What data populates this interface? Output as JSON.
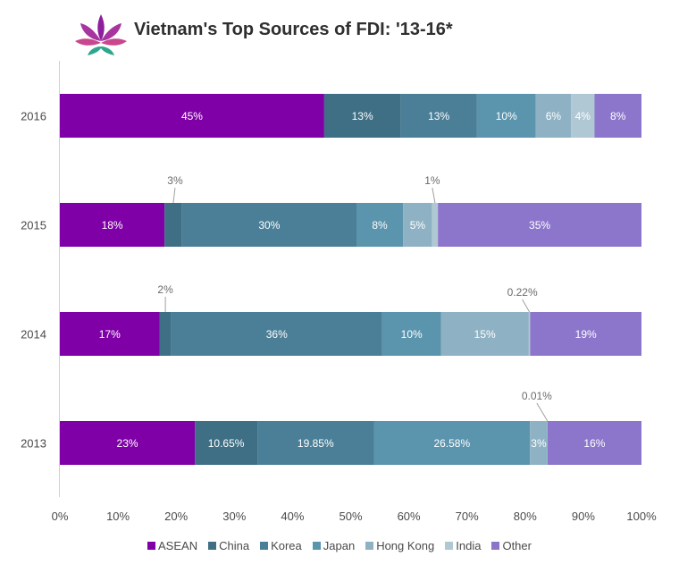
{
  "title": "Vietnam's Top Sources of FDI: '13-16*",
  "chart_data": {
    "type": "bar",
    "orientation": "horizontal",
    "stacked": true,
    "title": "Vietnam's Top Sources of FDI: '13-16*",
    "xlabel": "",
    "ylabel": "",
    "xlim": [
      0,
      100
    ],
    "x_ticks": [
      "0%",
      "10%",
      "20%",
      "30%",
      "40%",
      "50%",
      "60%",
      "70%",
      "80%",
      "90%",
      "100%"
    ],
    "categories": [
      "2016",
      "2015",
      "2014",
      "2013"
    ],
    "series": [
      {
        "name": "ASEAN",
        "color": "#7f00a6",
        "values": [
          45,
          18,
          17,
          23
        ],
        "labels": [
          "45%",
          "18%",
          "17%",
          "23%"
        ]
      },
      {
        "name": "China",
        "color": "#3e6f85",
        "values": [
          13,
          3,
          2,
          10.65
        ],
        "labels": [
          "13%",
          "3%",
          "2%",
          "10.65%"
        ]
      },
      {
        "name": "Korea",
        "color": "#4b7f98",
        "values": [
          13,
          30,
          36,
          19.85
        ],
        "labels": [
          "13%",
          "30%",
          "36%",
          "19.85%"
        ]
      },
      {
        "name": "Japan",
        "color": "#5b94ad",
        "values": [
          10,
          8,
          10,
          26.58
        ],
        "labels": [
          "10%",
          "8%",
          "10%",
          "26.58%"
        ]
      },
      {
        "name": "Hong Kong",
        "color": "#8eb2c4",
        "values": [
          6,
          5,
          15,
          3
        ],
        "labels": [
          "6%",
          "5%",
          "15%",
          "3%"
        ]
      },
      {
        "name": "India",
        "color": "#b0c8d4",
        "values": [
          4,
          1,
          0.22,
          0.01
        ],
        "labels": [
          "4%",
          "1%",
          "0.22%",
          "0.01%"
        ]
      },
      {
        "name": "Other",
        "color": "#8c76cb",
        "values": [
          8,
          35,
          19,
          16
        ],
        "labels": [
          "8%",
          "35%",
          "19%",
          "16%"
        ]
      }
    ],
    "callouts": [
      {
        "category": "2015",
        "series": "China",
        "text": "3%"
      },
      {
        "category": "2015",
        "series": "India",
        "text": "1%"
      },
      {
        "category": "2014",
        "series": "China",
        "text": "2%"
      },
      {
        "category": "2014",
        "series": "India",
        "text": "0.22%"
      },
      {
        "category": "2013",
        "series": "India",
        "text": "0.01%"
      }
    ],
    "legend_position": "bottom",
    "grid": false
  }
}
